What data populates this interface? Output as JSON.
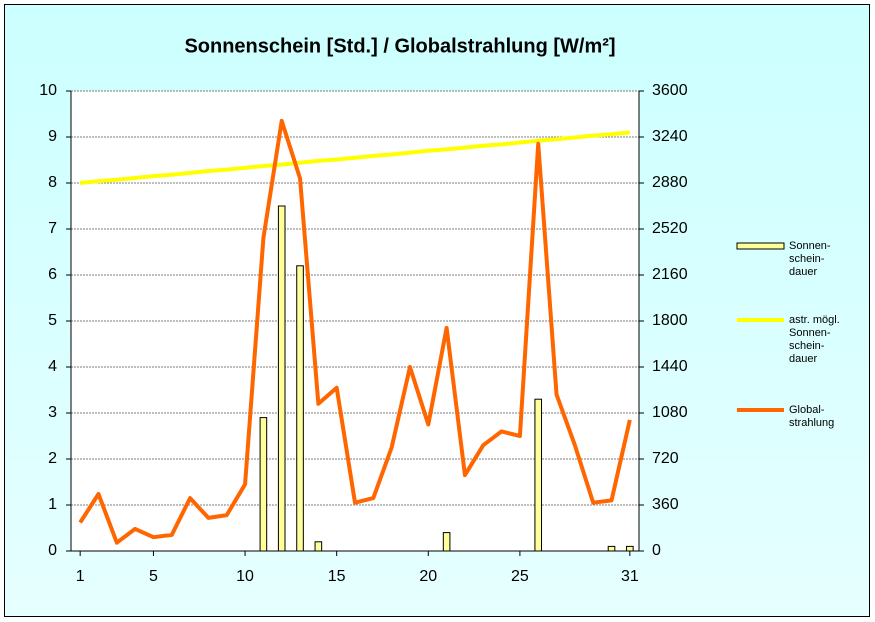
{
  "chart_data": {
    "type": "bar-line",
    "title": "Sonnenschein [Std.] / Globalstrahlung [W/m²]",
    "x": [
      1,
      2,
      3,
      4,
      5,
      6,
      7,
      8,
      9,
      10,
      11,
      12,
      13,
      14,
      15,
      16,
      17,
      18,
      19,
      20,
      21,
      22,
      23,
      24,
      25,
      26,
      27,
      28,
      29,
      30,
      31
    ],
    "xlim": [
      0.5,
      31.5
    ],
    "xticks": [
      1,
      5,
      10,
      15,
      20,
      25,
      31
    ],
    "ylim": [
      0,
      10
    ],
    "yticks": [
      0,
      1,
      2,
      3,
      4,
      5,
      6,
      7,
      8,
      9,
      10
    ],
    "y2lim": [
      0,
      3600
    ],
    "y2ticks": [
      0,
      360,
      720,
      1080,
      1440,
      1800,
      2160,
      2520,
      2880,
      3240,
      3600
    ],
    "grid": true,
    "legend": "right",
    "series": [
      {
        "name": "Sonnen-\nschein-\ndauer",
        "kind": "bar",
        "color": "#ffff99",
        "values": [
          0,
          0,
          0,
          0,
          0,
          0,
          0,
          0,
          0,
          0,
          2.9,
          7.5,
          6.2,
          0.2,
          0,
          0,
          0,
          0,
          0,
          0,
          0.4,
          0,
          0,
          0,
          0,
          3.3,
          0,
          0,
          0,
          0.1,
          0.1
        ]
      },
      {
        "name": "astr. mögl.\nSonnen-\nschein-\ndauer",
        "kind": "line",
        "color": "#ffff00",
        "values": [
          8.0,
          8.04,
          8.07,
          8.11,
          8.15,
          8.18,
          8.22,
          8.26,
          8.29,
          8.33,
          8.37,
          8.4,
          8.44,
          8.48,
          8.51,
          8.55,
          8.59,
          8.62,
          8.66,
          8.7,
          8.73,
          8.77,
          8.81,
          8.84,
          8.88,
          8.92,
          8.95,
          8.99,
          9.03,
          9.06,
          9.1
        ]
      },
      {
        "name": "Global-\nstrahlung",
        "kind": "line",
        "axis": "y2",
        "color": "#ff6600",
        "values": [
          223,
          446,
          65,
          173,
          108,
          126,
          414,
          259,
          281,
          522,
          2448,
          3366,
          2916,
          1152,
          1278,
          378,
          414,
          810,
          1440,
          990,
          1746,
          594,
          828,
          936,
          900,
          3186,
          1224,
          828,
          378,
          396,
          1026
        ]
      }
    ]
  }
}
